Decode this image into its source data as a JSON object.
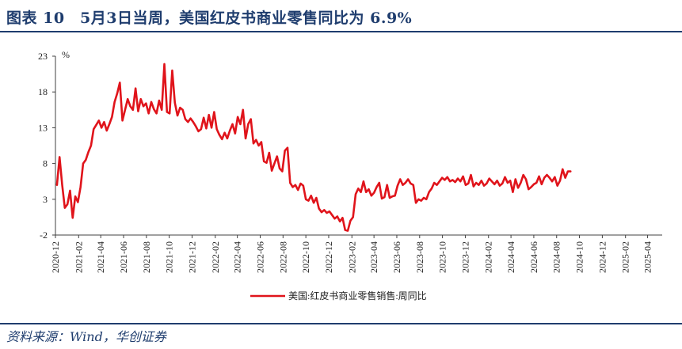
{
  "header": {
    "title": "图表 10　5月3日当周，美国红皮书商业零售同比为 6.9%"
  },
  "footer": {
    "source": "资料来源：Wind，华创证券"
  },
  "colors": {
    "accent": "#1f3d6e",
    "series": "#e0141b",
    "axis": "#404040"
  },
  "chart_data": {
    "type": "line",
    "title": "",
    "xlabel": "",
    "ylabel": "%",
    "ylim": [
      -2,
      23
    ],
    "yticks": [
      23,
      18,
      13,
      8,
      3,
      -2
    ],
    "xlim": [
      "2020-12-01",
      "2025-05-10"
    ],
    "xtick_labels": [
      "2020-12",
      "2021-02",
      "2021-04",
      "2021-06",
      "2021-08",
      "2021-10",
      "2021-12",
      "2022-02",
      "2022-04",
      "2022-06",
      "2022-08",
      "2022-10",
      "2022-12",
      "2023-02",
      "2023-04",
      "2023-06",
      "2023-08",
      "2023-10",
      "2023-12",
      "2024-02",
      "2024-04",
      "2024-06",
      "2024-08",
      "2024-10",
      "2024-12",
      "2025-02",
      "2025-04"
    ],
    "legend_position": "bottom-center",
    "grid": false,
    "series": [
      {
        "name": "美国:红皮书商业零售销售:周同比",
        "color": "#e0141b",
        "points": [
          [
            "2020-12-05",
            5.0
          ],
          [
            "2020-12-12",
            8.9
          ],
          [
            "2020-12-19",
            5.0
          ],
          [
            "2020-12-26",
            1.8
          ],
          [
            "2021-01-02",
            2.3
          ],
          [
            "2021-01-09",
            4.2
          ],
          [
            "2021-01-16",
            0.4
          ],
          [
            "2021-01-23",
            3.4
          ],
          [
            "2021-01-30",
            2.6
          ],
          [
            "2021-02-06",
            4.7
          ],
          [
            "2021-02-13",
            8.0
          ],
          [
            "2021-02-20",
            8.5
          ],
          [
            "2021-02-27",
            9.6
          ],
          [
            "2021-03-06",
            10.5
          ],
          [
            "2021-03-13",
            12.8
          ],
          [
            "2021-03-20",
            13.4
          ],
          [
            "2021-03-27",
            14.0
          ],
          [
            "2021-04-03",
            13.0
          ],
          [
            "2021-04-10",
            13.8
          ],
          [
            "2021-04-17",
            12.6
          ],
          [
            "2021-04-24",
            13.5
          ],
          [
            "2021-05-01",
            14.5
          ],
          [
            "2021-05-08",
            16.6
          ],
          [
            "2021-05-15",
            17.8
          ],
          [
            "2021-05-22",
            19.3
          ],
          [
            "2021-05-29",
            14.0
          ],
          [
            "2021-06-05",
            15.5
          ],
          [
            "2021-06-12",
            17.0
          ],
          [
            "2021-06-19",
            16.0
          ],
          [
            "2021-06-26",
            15.5
          ],
          [
            "2021-07-03",
            18.5
          ],
          [
            "2021-07-10",
            15.3
          ],
          [
            "2021-07-17",
            17.0
          ],
          [
            "2021-07-24",
            16.0
          ],
          [
            "2021-07-31",
            16.4
          ],
          [
            "2021-08-07",
            15.0
          ],
          [
            "2021-08-14",
            16.6
          ],
          [
            "2021-08-21",
            15.6
          ],
          [
            "2021-08-28",
            15.0
          ],
          [
            "2021-09-04",
            16.8
          ],
          [
            "2021-09-11",
            15.5
          ],
          [
            "2021-09-18",
            21.9
          ],
          [
            "2021-09-25",
            15.2
          ],
          [
            "2021-10-02",
            15.0
          ],
          [
            "2021-10-09",
            21.0
          ],
          [
            "2021-10-16",
            16.5
          ],
          [
            "2021-10-23",
            14.7
          ],
          [
            "2021-10-30",
            15.8
          ],
          [
            "2021-11-06",
            15.5
          ],
          [
            "2021-11-13",
            14.2
          ],
          [
            "2021-11-20",
            13.8
          ],
          [
            "2021-11-27",
            14.3
          ],
          [
            "2021-12-04",
            13.8
          ],
          [
            "2021-12-11",
            13.2
          ],
          [
            "2021-12-18",
            12.5
          ],
          [
            "2021-12-25",
            12.8
          ],
          [
            "2022-01-01",
            14.4
          ],
          [
            "2022-01-08",
            12.9
          ],
          [
            "2022-01-15",
            14.8
          ],
          [
            "2022-01-22",
            13.0
          ],
          [
            "2022-01-29",
            15.2
          ],
          [
            "2022-02-05",
            12.8
          ],
          [
            "2022-02-12",
            12.0
          ],
          [
            "2022-02-19",
            11.4
          ],
          [
            "2022-02-26",
            12.3
          ],
          [
            "2022-03-05",
            11.5
          ],
          [
            "2022-03-12",
            12.6
          ],
          [
            "2022-03-19",
            13.5
          ],
          [
            "2022-03-26",
            12.2
          ],
          [
            "2022-04-02",
            14.5
          ],
          [
            "2022-04-09",
            13.5
          ],
          [
            "2022-04-16",
            15.5
          ],
          [
            "2022-04-23",
            11.5
          ],
          [
            "2022-04-30",
            13.5
          ],
          [
            "2022-05-07",
            14.2
          ],
          [
            "2022-05-14",
            10.8
          ],
          [
            "2022-05-21",
            11.3
          ],
          [
            "2022-05-28",
            10.5
          ],
          [
            "2022-06-04",
            11.0
          ],
          [
            "2022-06-11",
            8.3
          ],
          [
            "2022-06-18",
            8.1
          ],
          [
            "2022-06-25",
            9.5
          ],
          [
            "2022-07-02",
            7.0
          ],
          [
            "2022-07-09",
            8.0
          ],
          [
            "2022-07-16",
            9.0
          ],
          [
            "2022-07-23",
            7.3
          ],
          [
            "2022-07-30",
            6.9
          ],
          [
            "2022-08-06",
            9.8
          ],
          [
            "2022-08-13",
            10.2
          ],
          [
            "2022-08-20",
            5.3
          ],
          [
            "2022-08-27",
            4.7
          ],
          [
            "2022-09-03",
            5.0
          ],
          [
            "2022-09-10",
            4.3
          ],
          [
            "2022-09-17",
            5.2
          ],
          [
            "2022-09-24",
            4.9
          ],
          [
            "2022-10-01",
            3.0
          ],
          [
            "2022-10-08",
            2.8
          ],
          [
            "2022-10-15",
            3.5
          ],
          [
            "2022-10-22",
            2.5
          ],
          [
            "2022-10-29",
            3.2
          ],
          [
            "2022-11-05",
            1.7
          ],
          [
            "2022-11-12",
            1.2
          ],
          [
            "2022-11-19",
            1.5
          ],
          [
            "2022-11-26",
            1.1
          ],
          [
            "2022-12-03",
            1.3
          ],
          [
            "2022-12-10",
            0.8
          ],
          [
            "2022-12-17",
            0.3
          ],
          [
            "2022-12-24",
            0.6
          ],
          [
            "2022-12-31",
            -0.1
          ],
          [
            "2023-01-07",
            0.4
          ],
          [
            "2023-01-14",
            -1.3
          ],
          [
            "2023-01-21",
            -1.4
          ],
          [
            "2023-01-28",
            0.0
          ],
          [
            "2023-02-04",
            0.5
          ],
          [
            "2023-02-11",
            3.7
          ],
          [
            "2023-02-18",
            4.5
          ],
          [
            "2023-02-25",
            4.0
          ],
          [
            "2023-03-04",
            5.5
          ],
          [
            "2023-03-11",
            4.0
          ],
          [
            "2023-03-18",
            4.4
          ],
          [
            "2023-03-25",
            3.5
          ],
          [
            "2023-04-01",
            3.9
          ],
          [
            "2023-04-08",
            4.7
          ],
          [
            "2023-04-15",
            5.3
          ],
          [
            "2023-04-22",
            3.1
          ],
          [
            "2023-04-29",
            3.3
          ],
          [
            "2023-05-06",
            5.0
          ],
          [
            "2023-05-13",
            3.2
          ],
          [
            "2023-05-20",
            3.4
          ],
          [
            "2023-05-27",
            3.5
          ],
          [
            "2023-06-03",
            4.9
          ],
          [
            "2023-06-10",
            5.8
          ],
          [
            "2023-06-17",
            5.0
          ],
          [
            "2023-06-24",
            5.3
          ],
          [
            "2023-07-01",
            5.8
          ],
          [
            "2023-07-08",
            5.2
          ],
          [
            "2023-07-15",
            5.0
          ],
          [
            "2023-07-22",
            2.5
          ],
          [
            "2023-07-29",
            3.0
          ],
          [
            "2023-08-05",
            2.8
          ],
          [
            "2023-08-12",
            3.2
          ],
          [
            "2023-08-19",
            3.0
          ],
          [
            "2023-08-26",
            4.0
          ],
          [
            "2023-09-02",
            4.5
          ],
          [
            "2023-09-09",
            5.3
          ],
          [
            "2023-09-16",
            5.0
          ],
          [
            "2023-09-23",
            5.5
          ],
          [
            "2023-09-30",
            6.0
          ],
          [
            "2023-10-07",
            5.7
          ],
          [
            "2023-10-14",
            6.1
          ],
          [
            "2023-10-21",
            5.5
          ],
          [
            "2023-10-28",
            5.7
          ],
          [
            "2023-11-04",
            5.4
          ],
          [
            "2023-11-11",
            5.9
          ],
          [
            "2023-11-18",
            5.5
          ],
          [
            "2023-11-25",
            6.2
          ],
          [
            "2023-12-02",
            5.0
          ],
          [
            "2023-12-09",
            5.2
          ],
          [
            "2023-12-16",
            6.4
          ],
          [
            "2023-12-23",
            4.8
          ],
          [
            "2023-12-30",
            5.3
          ],
          [
            "2024-01-06",
            5.0
          ],
          [
            "2024-01-13",
            5.6
          ],
          [
            "2024-01-20",
            4.9
          ],
          [
            "2024-01-27",
            5.2
          ],
          [
            "2024-02-03",
            5.9
          ],
          [
            "2024-02-10",
            5.5
          ],
          [
            "2024-02-17",
            5.1
          ],
          [
            "2024-02-24",
            5.6
          ],
          [
            "2024-03-02",
            4.9
          ],
          [
            "2024-03-09",
            5.2
          ],
          [
            "2024-03-16",
            6.1
          ],
          [
            "2024-03-23",
            5.3
          ],
          [
            "2024-03-30",
            5.6
          ],
          [
            "2024-04-06",
            4.0
          ],
          [
            "2024-04-13",
            5.8
          ],
          [
            "2024-04-20",
            4.6
          ],
          [
            "2024-04-27",
            5.3
          ],
          [
            "2024-05-04",
            6.4
          ],
          [
            "2024-05-11",
            5.8
          ],
          [
            "2024-05-18",
            4.4
          ],
          [
            "2024-05-25",
            4.7
          ],
          [
            "2024-06-01",
            5.1
          ],
          [
            "2024-06-08",
            5.3
          ],
          [
            "2024-06-15",
            6.2
          ],
          [
            "2024-06-22",
            5.1
          ],
          [
            "2024-06-29",
            6.0
          ],
          [
            "2024-07-06",
            6.4
          ],
          [
            "2024-07-13",
            6.0
          ],
          [
            "2024-07-20",
            5.5
          ],
          [
            "2024-07-27",
            6.1
          ],
          [
            "2024-08-03",
            4.9
          ],
          [
            "2024-08-10",
            5.6
          ],
          [
            "2024-08-17",
            7.2
          ],
          [
            "2024-08-24",
            6.0
          ],
          [
            "2024-08-31",
            6.9
          ],
          [
            "2024-09-07",
            6.9
          ]
        ]
      }
    ]
  }
}
